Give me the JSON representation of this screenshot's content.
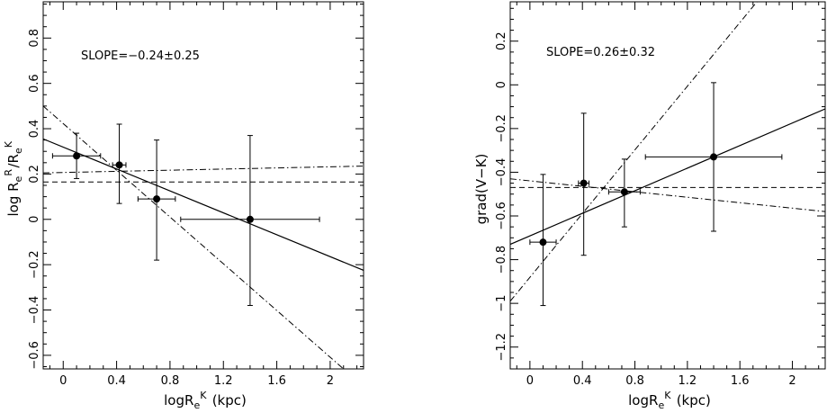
{
  "chart_data": [
    {
      "type": "scatter",
      "title": "",
      "xlabel": "logRe^K (kpc)",
      "ylabel": "log Re^R/Re^K",
      "annotation": "SLOPE=−0.24±0.25",
      "xlim": [
        -0.15,
        2.25
      ],
      "ylim": [
        -0.66,
        0.96
      ],
      "xticks": [
        0,
        0.4,
        0.8,
        1.2,
        1.6,
        2
      ],
      "xtick_labels": [
        "0",
        "0.4",
        "0.8",
        "1.2",
        "1.6",
        "2"
      ],
      "yticks": [
        -0.6,
        -0.4,
        -0.2,
        0,
        0.2,
        0.4,
        0.6,
        0.8
      ],
      "ytick_labels": [
        "−0.6",
        "−0.4",
        "−0.2",
        "0",
        "0.2",
        "0.4",
        "0.6",
        "0.8"
      ],
      "points": [
        {
          "x": 0.1,
          "y": 0.28,
          "xerr": [
            0.18,
            0.18
          ],
          "yerr": [
            0.1,
            0.1
          ]
        },
        {
          "x": 0.42,
          "y": 0.24,
          "xerr": [
            0.05,
            0.05
          ],
          "yerr": [
            0.17,
            0.18
          ]
        },
        {
          "x": 0.7,
          "y": 0.09,
          "xerr": [
            0.14,
            0.14
          ],
          "yerr": [
            0.27,
            0.26
          ]
        },
        {
          "x": 1.4,
          "y": 0.0,
          "xerr": [
            0.52,
            0.52
          ],
          "yerr": [
            0.38,
            0.37
          ]
        }
      ],
      "lines": [
        {
          "style": "solid",
          "p1": [
            -0.15,
            0.355
          ],
          "p2": [
            2.25,
            -0.225
          ]
        },
        {
          "style": "dashed",
          "p1": [
            -0.15,
            0.165
          ],
          "p2": [
            2.25,
            0.165
          ]
        },
        {
          "style": "dashdot",
          "p1": [
            -0.15,
            0.5
          ],
          "p2": [
            2.1,
            -0.66
          ]
        },
        {
          "style": "dashdot",
          "p1": [
            -0.15,
            0.205
          ],
          "p2": [
            2.25,
            0.235
          ]
        }
      ]
    },
    {
      "type": "scatter",
      "title": "",
      "xlabel": "logRe^K (kpc)",
      "ylabel": "grad(V−K)",
      "annotation": "SLOPE=0.26±0.32",
      "xlim": [
        -0.15,
        2.25
      ],
      "ylim": [
        -1.3,
        0.38
      ],
      "xticks": [
        0,
        0.4,
        0.8,
        1.2,
        1.6,
        2
      ],
      "xtick_labels": [
        "0",
        "0.4",
        "0.8",
        "1.2",
        "1.6",
        "2"
      ],
      "yticks": [
        -1.2,
        -1,
        -0.8,
        -0.6,
        -0.4,
        -0.2,
        0,
        0.2
      ],
      "ytick_labels": [
        "−1.2",
        "−1",
        "−0.8",
        "−0.6",
        "−0.4",
        "−0.2",
        "0",
        "0.2"
      ],
      "points": [
        {
          "x": 0.1,
          "y": -0.72,
          "xerr": [
            0.1,
            0.1
          ],
          "yerr": [
            0.29,
            0.31
          ]
        },
        {
          "x": 0.41,
          "y": -0.45,
          "xerr": [
            0.04,
            0.04
          ],
          "yerr": [
            0.33,
            0.32
          ]
        },
        {
          "x": 0.72,
          "y": -0.49,
          "xerr": [
            0.12,
            0.12
          ],
          "yerr": [
            0.16,
            0.15
          ]
        },
        {
          "x": 1.4,
          "y": -0.33,
          "xerr": [
            0.52,
            0.52
          ],
          "yerr": [
            0.34,
            0.34
          ]
        }
      ],
      "lines": [
        {
          "style": "solid",
          "p1": [
            -0.15,
            -0.73
          ],
          "p2": [
            2.25,
            -0.11
          ]
        },
        {
          "style": "dashed",
          "p1": [
            -0.15,
            -0.47
          ],
          "p2": [
            2.25,
            -0.47
          ]
        },
        {
          "style": "dashdot",
          "p1": [
            -0.15,
            -0.99
          ],
          "p2": [
            1.73,
            0.38
          ]
        },
        {
          "style": "dashdot",
          "p1": [
            -0.15,
            -0.43
          ],
          "p2": [
            2.25,
            -0.58
          ]
        }
      ]
    }
  ]
}
